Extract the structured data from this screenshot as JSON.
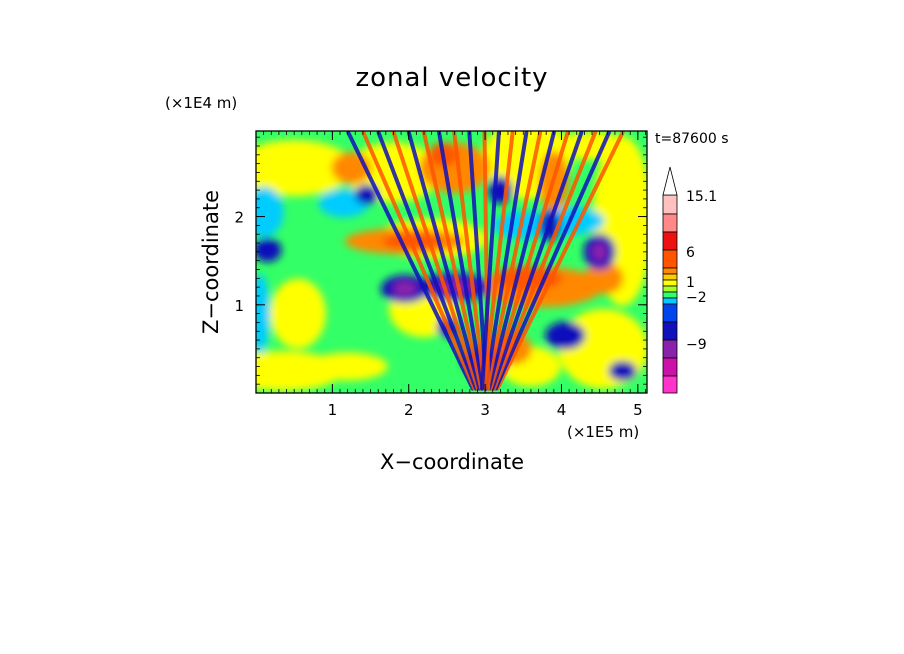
{
  "chart_data": {
    "type": "heatmap",
    "title": "zonal velocity",
    "xlabel": "X−coordinate",
    "ylabel": "Z−coordinate",
    "x_unit_label": "(×1E5 m)",
    "y_unit_label": "(×1E4 m)",
    "time_label": "t=87600 s",
    "xlim": [
      0,
      5.12
    ],
    "ylim": [
      0,
      2.97
    ],
    "x_ticks": [
      "1",
      "2",
      "3",
      "4",
      "5"
    ],
    "y_ticks": [
      "1",
      "2"
    ],
    "x_tick_values": [
      1,
      2,
      3,
      4,
      5
    ],
    "y_tick_values": [
      1,
      2
    ],
    "colorbar": {
      "labels": [
        "15.1",
        "6",
        "1",
        "−2",
        "−9"
      ],
      "colors": [
        "#ff33cc",
        "#cc11aa",
        "#8822aa",
        "#1111bb",
        "#0044ee",
        "#00ccff",
        "#33ff66",
        "#aaff22",
        "#ffff00",
        "#ffcc00",
        "#ff8800",
        "#ff5500",
        "#ee1111",
        "#ff8888",
        "#ffc0c0"
      ],
      "extend": "max"
    },
    "features": [
      {
        "x": 1.95,
        "z": 1.75,
        "value": 6
      },
      {
        "x": 2.55,
        "z": 2.55,
        "value": 6
      },
      {
        "x": 3.75,
        "z": 1.2,
        "value": 6
      },
      {
        "x": 3.35,
        "z": 0.5,
        "value": 6
      },
      {
        "x": 1.95,
        "z": 1.2,
        "value": -9
      },
      {
        "x": 2.6,
        "z": 1.2,
        "value": -9
      },
      {
        "x": 2.95,
        "z": 0.4,
        "value": -9
      },
      {
        "x": 3.2,
        "z": 2.3,
        "value": -9
      },
      {
        "x": 4.5,
        "z": 1.6,
        "value": -9
      },
      {
        "x": 4.0,
        "z": 0.65,
        "value": -9
      },
      {
        "x": 1.8,
        "z": 0.6,
        "value": 1
      },
      {
        "x": 4.7,
        "z": 0.6,
        "value": 1
      },
      {
        "x": 0.5,
        "z": 2.4,
        "value": 1
      },
      {
        "x": 0.4,
        "z": 1.0,
        "value": -2
      }
    ]
  }
}
